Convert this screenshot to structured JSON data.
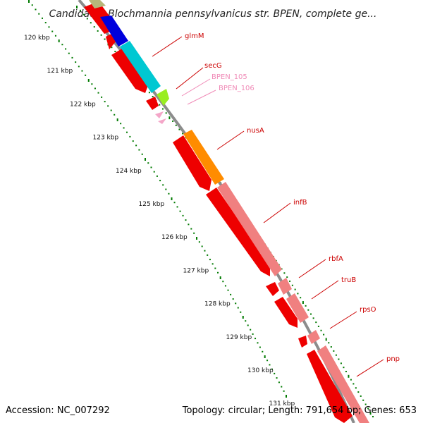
{
  "title": "Candidatus Blochmannia pennsylvanicus str. BPEN, complete ge...",
  "footer": {
    "accession": "Accession: NC_007292",
    "topology": "Topology: circular; Length: 791,654 bp; Genes: 653"
  },
  "colors": {
    "backbone": "#8c8c8c",
    "tick": "#007a00",
    "label_line": "#e00000",
    "label_line_light": "#f4a6c8"
  },
  "ruler_labels": [
    "120 kbp",
    "121 kbp",
    "122 kbp",
    "123 kbp",
    "124 kbp",
    "125 kbp",
    "126 kbp",
    "127 kbp",
    "128 kbp",
    "129 kbp",
    "130 kbp",
    "131 kbp"
  ],
  "genes": [
    {
      "name": "glmM",
      "label_color": "#cc0000"
    },
    {
      "name": "secG",
      "label_color": "#cc0000"
    },
    {
      "name": "BPEN_105",
      "label_color": "#f08cb8"
    },
    {
      "name": "BPEN_106",
      "label_color": "#f08cb8"
    },
    {
      "name": "nusA",
      "label_color": "#cc0000"
    },
    {
      "name": "infB",
      "label_color": "#cc0000"
    },
    {
      "name": "rbfA",
      "label_color": "#cc0000"
    },
    {
      "name": "truB",
      "label_color": "#cc0000"
    },
    {
      "name": "rpsO",
      "label_color": "#cc0000"
    },
    {
      "name": "pnp",
      "label_color": "#cc0000"
    }
  ],
  "feature_colors": {
    "cds_red": "#ee0000",
    "cog_blue": "#0000dd",
    "cog_cyan": "#00c8d2",
    "cog_green": "#99ee22",
    "cog_orange": "#ff8c00",
    "cog_pink": "#f08080",
    "cog_olive": "#b7b77a",
    "cog_light_pink": "#f4a6c8"
  }
}
